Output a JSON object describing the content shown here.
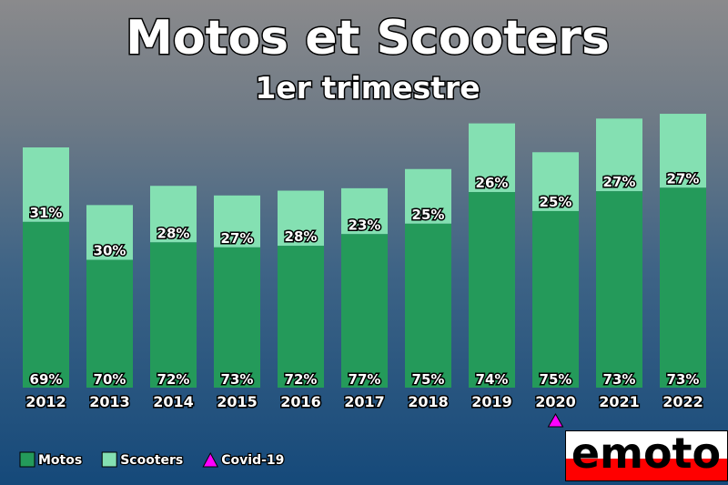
{
  "chart_data": {
    "type": "bar",
    "stacked": true,
    "title": "Motos et Scooters",
    "subtitle": "1er trimestre",
    "categories": [
      "2012",
      "2013",
      "2014",
      "2015",
      "2016",
      "2017",
      "2018",
      "2019",
      "2020",
      "2021",
      "2022"
    ],
    "series": [
      {
        "name": "Motos",
        "color": "#249a5a",
        "percent_labels": [
          69,
          70,
          72,
          73,
          72,
          77,
          75,
          74,
          75,
          73,
          73
        ]
      },
      {
        "name": "Scooters",
        "color": "#84e0b2",
        "percent_labels": [
          31,
          30,
          28,
          27,
          28,
          23,
          25,
          26,
          25,
          27,
          27
        ]
      }
    ],
    "relative_totals": [
      1.0,
      0.76,
      0.84,
      0.8,
      0.82,
      0.83,
      0.91,
      1.1,
      0.98,
      1.12,
      1.14
    ],
    "annotations": [
      {
        "category": "2020",
        "marker": "triangle",
        "color": "#ff00ff",
        "label": "Covid-19"
      }
    ],
    "legend": {
      "position": "bottom-left",
      "items": [
        "Motos",
        "Scooters",
        "Covid-19"
      ]
    },
    "grid": false
  },
  "brand": {
    "logo": "emoto",
    "colors": {
      "red": "#ff0000",
      "white": "#ffffff",
      "black": "#000000"
    }
  }
}
